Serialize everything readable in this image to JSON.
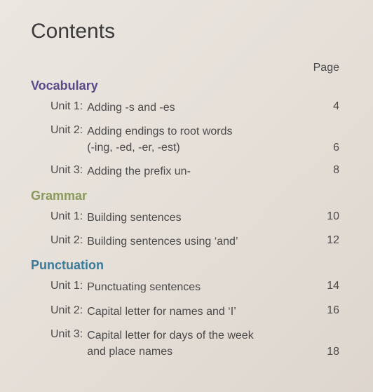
{
  "title": "Contents",
  "page_header": "Page",
  "colors": {
    "vocabulary": "#5a4a8a",
    "grammar": "#8a9a5a",
    "punctuation": "#3a7a9a",
    "text": "#4a4a4a",
    "background_start": "#ebe6e0",
    "background_end": "#ddd6ce"
  },
  "typography": {
    "title_fontsize": 30,
    "section_fontsize": 18,
    "body_fontsize": 16,
    "font_family": "Comic Sans MS"
  },
  "sections": [
    {
      "name": "Vocabulary",
      "color_key": "vocabulary",
      "units": [
        {
          "label": "Unit 1:",
          "text": "Adding -s and -es",
          "page": "4"
        },
        {
          "label": "Unit 2:",
          "text": "Adding endings to root words\n(-ing, -ed, -er, -est)",
          "page": "6"
        },
        {
          "label": "Unit 3:",
          "text": "Adding the prefix un-",
          "page": "8"
        }
      ]
    },
    {
      "name": "Grammar",
      "color_key": "grammar",
      "units": [
        {
          "label": "Unit 1:",
          "text": "Building sentences",
          "page": "10"
        },
        {
          "label": "Unit 2:",
          "text": "Building sentences using ‘and’",
          "page": "12"
        }
      ]
    },
    {
      "name": "Punctuation",
      "color_key": "punctuation",
      "units": [
        {
          "label": "Unit 1:",
          "text": "Punctuating sentences",
          "page": "14"
        },
        {
          "label": "Unit 2:",
          "text": "Capital letter for names and ‘I’",
          "page": "16"
        },
        {
          "label": "Unit 3:",
          "text": "Capital letter for days of the week\nand place names",
          "page": "18"
        }
      ]
    }
  ]
}
